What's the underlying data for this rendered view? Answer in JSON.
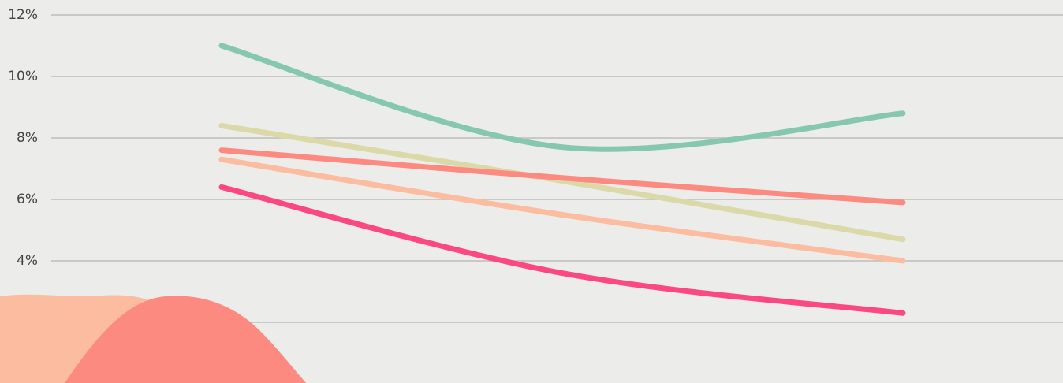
{
  "chart_data": {
    "type": "line",
    "categories": [
      null,
      null,
      null
    ],
    "series": [
      {
        "color": "#86c8ae",
        "values": [
          11.0,
          7.7,
          8.8
        ]
      },
      {
        "color": "#dcd9a9",
        "values": [
          8.4,
          6.6,
          4.7
        ]
      },
      {
        "color": "#fd8a80",
        "values": [
          7.6,
          6.7,
          5.9
        ]
      },
      {
        "color": "#fbbc9f",
        "values": [
          7.3,
          5.5,
          4.0
        ]
      },
      {
        "color": "#fb4880",
        "values": [
          6.4,
          3.6,
          2.3
        ]
      }
    ],
    "ylim": [
      0,
      12
    ],
    "yticks": [
      {
        "value": 2,
        "label": "2%"
      },
      {
        "value": 4,
        "label": "4%"
      },
      {
        "value": 6,
        "label": "6%"
      },
      {
        "value": 8,
        "label": "8%"
      },
      {
        "value": 10,
        "label": "10%"
      },
      {
        "value": 12,
        "label": "12%"
      }
    ],
    "grid": true
  }
}
